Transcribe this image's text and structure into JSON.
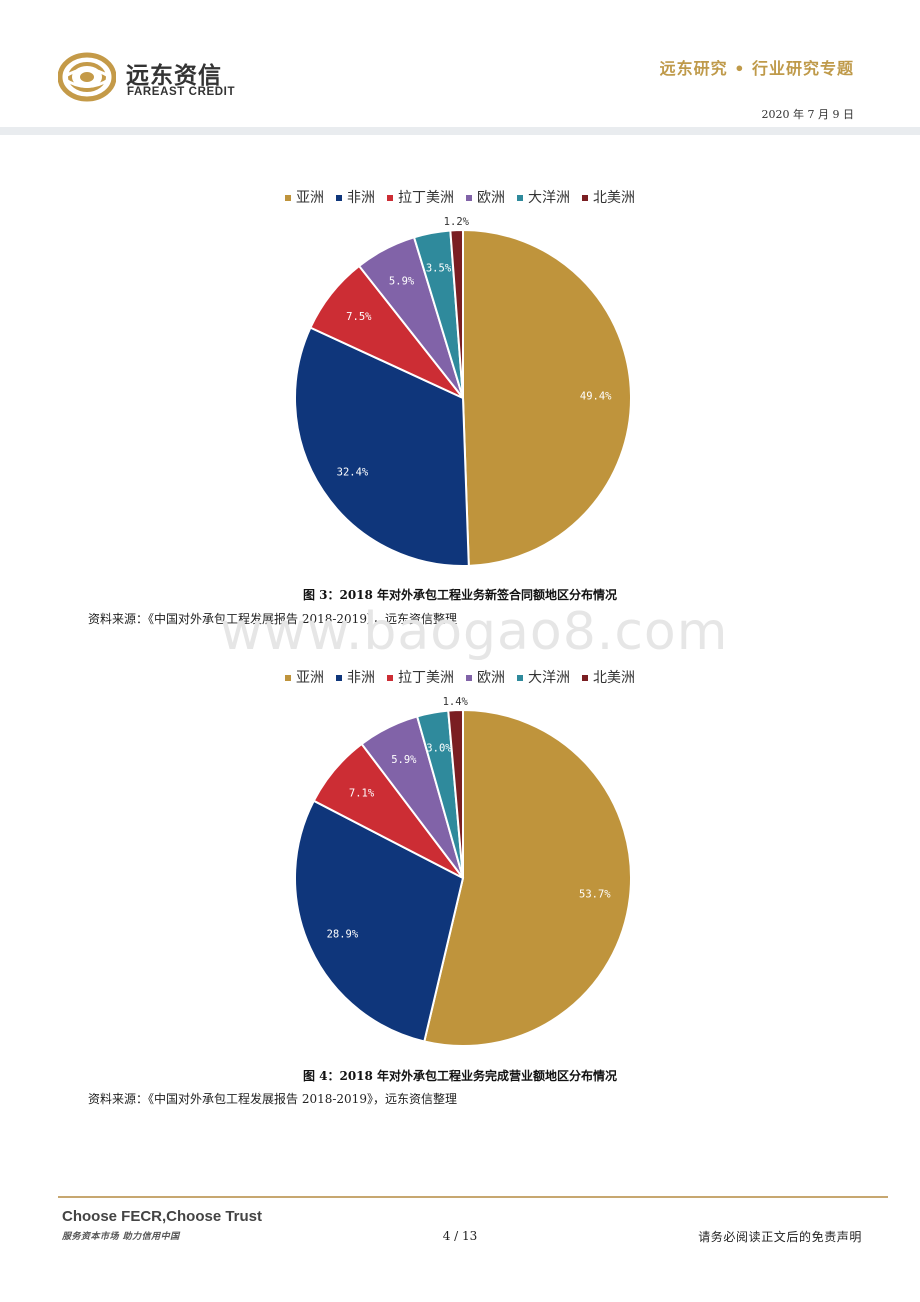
{
  "header": {
    "logo_cn": "远东资信",
    "logo_en": "FAREAST CREDIT",
    "series_title": "远东研究 • 行业研究专题",
    "date": "2020 年 7 月 9 日"
  },
  "watermark": "www.baogao8.com",
  "chart_data": [
    {
      "type": "pie",
      "categories": [
        "亚洲",
        "非洲",
        "拉丁美洲",
        "欧洲",
        "大洋洲",
        "北美洲"
      ],
      "values": [
        49.4,
        32.4,
        7.5,
        5.9,
        3.5,
        1.2
      ],
      "labels": [
        "49.4%",
        "32.4%",
        "7.5%",
        "5.9%",
        "3.5%",
        "1.2%"
      ],
      "colors": [
        "#bf943c",
        "#0f367b",
        "#cc2d34",
        "#8163a8",
        "#2f8a9c",
        "#7a1e22"
      ],
      "legend_position": "top",
      "caption": "图 3：2018 年对外承包工程业务新签合同额地区分布情况",
      "source": "资料来源：《中国对外承包工程发展报告 2018-2019》，远东资信整理"
    },
    {
      "type": "pie",
      "categories": [
        "亚洲",
        "非洲",
        "拉丁美洲",
        "欧洲",
        "大洋洲",
        "北美洲"
      ],
      "values": [
        53.7,
        28.9,
        7.1,
        5.9,
        3.0,
        1.4
      ],
      "labels": [
        "53.7%",
        "28.9%",
        "7.1%",
        "5.9%",
        "3.0%",
        "1.4%"
      ],
      "colors": [
        "#bf943c",
        "#0f367b",
        "#cc2d34",
        "#8163a8",
        "#2f8a9c",
        "#7a1e22"
      ],
      "legend_position": "top",
      "caption": "图 4：2018 年对外承包工程业务完成营业额地区分布情况",
      "source": "资料来源：《中国对外承包工程发展报告 2018-2019》，远东资信整理"
    }
  ],
  "footer": {
    "slogan_en": "Choose FECR,Choose Trust",
    "slogan_cn": "服务资本市场  助力信用中国",
    "page": "4 / 13",
    "disclaimer": "请务必阅读正文后的免责声明"
  }
}
